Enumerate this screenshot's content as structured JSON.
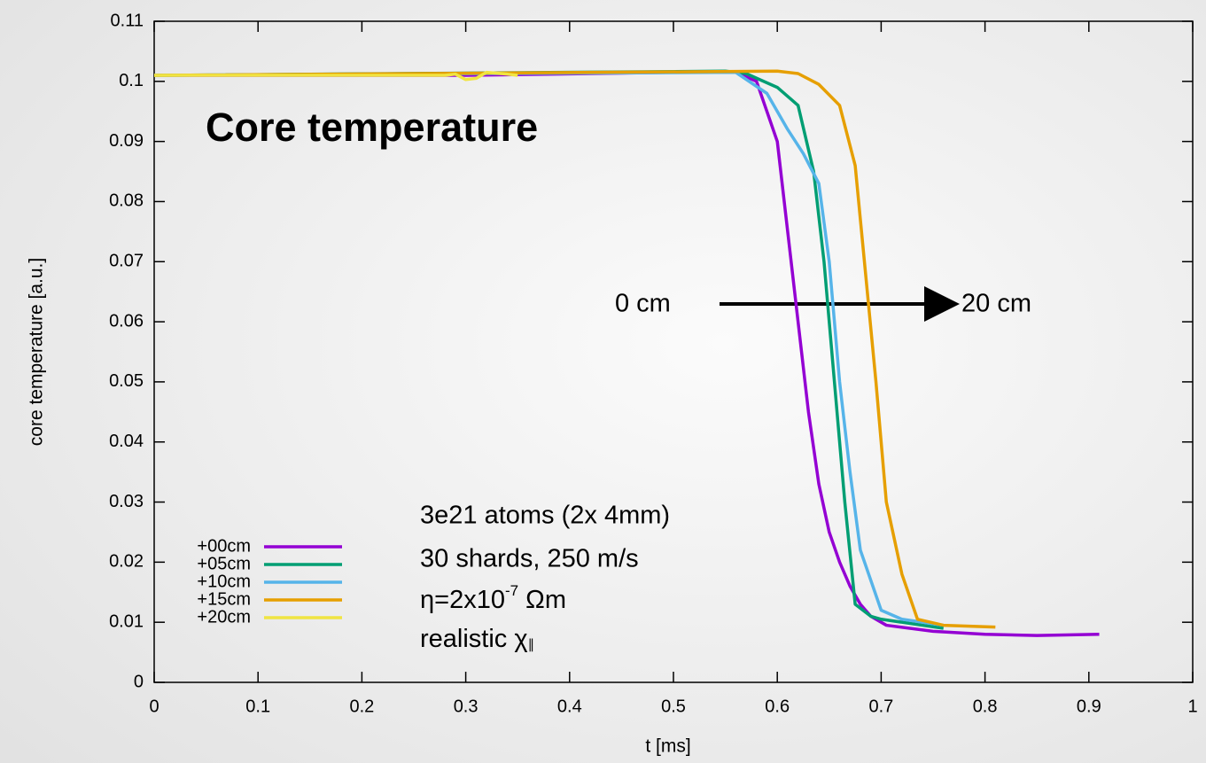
{
  "chart_data": {
    "type": "line",
    "title": "Core temperature",
    "xlabel": "t [ms]",
    "ylabel": "core temperature [a.u.]",
    "xlim": [
      0,
      1
    ],
    "xticks": [
      0,
      0.1,
      0.2,
      0.3,
      0.4,
      0.5,
      0.6,
      0.7,
      0.8,
      0.9,
      1
    ],
    "ylim": [
      0,
      0.11
    ],
    "yticks": [
      0,
      0.01,
      0.02,
      0.03,
      0.04,
      0.05,
      0.06,
      0.07,
      0.08,
      0.09,
      0.1,
      0.11
    ],
    "grid": false,
    "legend": "lower left",
    "annotations": {
      "arrow_start": "0 cm",
      "arrow_end": "20 cm",
      "line1": "3e21 atoms (2x 4mm)",
      "line2": "30 shards, 250 m/s",
      "line3": {
        "base": "η=2x10",
        "sup": "-7",
        "tail": " Ωm"
      },
      "line4": {
        "base": "realistic χ",
        "sub": "∥"
      }
    },
    "series": [
      {
        "name": "+00cm",
        "color": "#9400d3",
        "x": [
          0,
          0.3,
          0.5,
          0.56,
          0.58,
          0.6,
          0.61,
          0.62,
          0.63,
          0.64,
          0.65,
          0.66,
          0.67,
          0.68,
          0.69,
          0.705,
          0.75,
          0.8,
          0.85,
          0.91
        ],
        "values": [
          0.101,
          0.101,
          0.1015,
          0.1015,
          0.1,
          0.09,
          0.075,
          0.06,
          0.045,
          0.033,
          0.025,
          0.02,
          0.016,
          0.013,
          0.011,
          0.0095,
          0.0085,
          0.008,
          0.0078,
          0.008
        ]
      },
      {
        "name": "+05cm",
        "color": "#009e73",
        "x": [
          0,
          0.55,
          0.57,
          0.6,
          0.62,
          0.635,
          0.645,
          0.655,
          0.665,
          0.675,
          0.69,
          0.7,
          0.76
        ],
        "values": [
          0.101,
          0.1017,
          0.1013,
          0.099,
          0.096,
          0.085,
          0.07,
          0.05,
          0.03,
          0.013,
          0.011,
          0.0105,
          0.009
        ]
      },
      {
        "name": "+10cm",
        "color": "#56b4e9",
        "x": [
          0,
          0.56,
          0.59,
          0.61,
          0.625,
          0.64,
          0.65,
          0.66,
          0.67,
          0.68,
          0.7,
          0.72,
          0.76
        ],
        "values": [
          0.101,
          0.1015,
          0.098,
          0.092,
          0.088,
          0.083,
          0.07,
          0.05,
          0.035,
          0.022,
          0.012,
          0.0105,
          0.0095
        ]
      },
      {
        "name": "+15cm",
        "color": "#e69f00",
        "x": [
          0,
          0.6,
          0.62,
          0.64,
          0.66,
          0.675,
          0.685,
          0.695,
          0.705,
          0.72,
          0.735,
          0.76,
          0.81
        ],
        "values": [
          0.101,
          0.1017,
          0.1013,
          0.0995,
          0.096,
          0.086,
          0.068,
          0.05,
          0.03,
          0.018,
          0.0105,
          0.0095,
          0.0092
        ]
      },
      {
        "name": "+20cm",
        "color": "#f0e442",
        "x": [
          0,
          0.28,
          0.29,
          0.3,
          0.31,
          0.32,
          0.34,
          0.35
        ],
        "values": [
          0.101,
          0.101,
          0.1012,
          0.1003,
          0.1005,
          0.1015,
          0.1012,
          0.101
        ]
      }
    ]
  }
}
